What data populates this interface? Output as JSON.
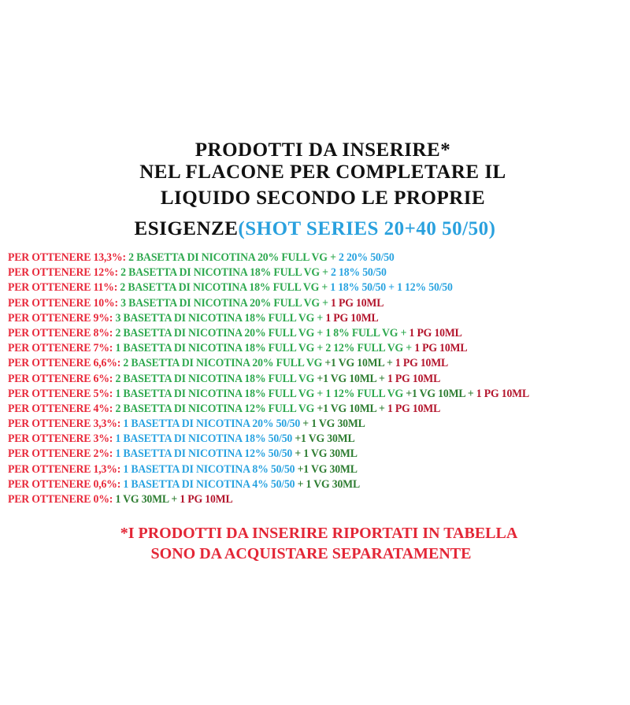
{
  "colors": {
    "label": "#e8283a",
    "full_vg": "#2ea84f",
    "vg": "#2e7d32",
    "fifty": "#29a3e0",
    "pg": "#b3142c"
  },
  "title": {
    "line1": "Prodotti da inserire*",
    "line2": "nel flacone per completare il",
    "line3": "liquido secondo le proprie",
    "line4_main": "esigenze",
    "line4_sub": "(Shot Series 20+40 50/50)"
  },
  "rows": [
    [
      [
        "Per ottenere 13,3%: ",
        "label"
      ],
      [
        "2 basetta di nicotina 20% full VG + ",
        "full_vg"
      ],
      [
        "2 20% 50/50",
        "fifty"
      ]
    ],
    [
      [
        "Per ottenere 12%: ",
        "label"
      ],
      [
        "2 basetta di nicotina 18% full VG + ",
        "full_vg"
      ],
      [
        "2 18% 50/50",
        "fifty"
      ]
    ],
    [
      [
        "Per ottenere 11%: ",
        "label"
      ],
      [
        "2 basetta di nicotina 18% full VG + ",
        "full_vg"
      ],
      [
        "1 18% 50/50 + 1 12% 50/50",
        "fifty"
      ]
    ],
    [
      [
        "Per ottenere 10%: ",
        "label"
      ],
      [
        "3 basetta di nicotina 20% full VG + ",
        "full_vg"
      ],
      [
        "1 PG 10ml",
        "pg"
      ]
    ],
    [
      [
        "Per ottenere 9%: ",
        "label"
      ],
      [
        "3 basetta di nicotina 18% full VG + ",
        "full_vg"
      ],
      [
        "1 PG 10ml",
        "pg"
      ]
    ],
    [
      [
        "Per ottenere 8%: ",
        "label"
      ],
      [
        "2 basetta di nicotina 20% full VG + 1 8% full VG + ",
        "full_vg"
      ],
      [
        "1 PG 10ml",
        "pg"
      ]
    ],
    [
      [
        "Per ottenere 7%: ",
        "label"
      ],
      [
        "1 basetta di nicotina 18% full VG + 2 12% full VG + ",
        "full_vg"
      ],
      [
        "1 PG 10ml",
        "pg"
      ]
    ],
    [
      [
        "Per ottenere 6,6%: ",
        "label"
      ],
      [
        "2 basetta di nicotina 20% full VG ",
        "full_vg"
      ],
      [
        "+1 VG 10ml + ",
        "vg"
      ],
      [
        "1 PG 10ml",
        "pg"
      ]
    ],
    [
      [
        "Per ottenere 6%: ",
        "label"
      ],
      [
        "2 basetta di nicotina 18% full VG ",
        "full_vg"
      ],
      [
        "+1 VG 10ml + ",
        "vg"
      ],
      [
        "1 PG 10ml",
        "pg"
      ]
    ],
    [
      [
        "Per ottenere 5%: ",
        "label"
      ],
      [
        "1 basetta di nicotina 18% full VG + 1 12% full VG ",
        "full_vg"
      ],
      [
        "+1 VG 10ml + ",
        "vg"
      ],
      [
        "1 PG 10ml",
        "pg"
      ]
    ],
    [
      [
        "Per ottenere 4%: ",
        "label"
      ],
      [
        "2 basetta di nicotina 12% full VG ",
        "full_vg"
      ],
      [
        "+1 VG 10ml + ",
        "vg"
      ],
      [
        "1 PG 10ml",
        "pg"
      ]
    ],
    [
      [
        "Per ottenere 3,3%: ",
        "label"
      ],
      [
        "1 basetta di nicotina 20% 50/50 ",
        "fifty"
      ],
      [
        "+ 1 VG 30ml",
        "vg"
      ]
    ],
    [
      [
        "Per ottenere 3%: ",
        "label"
      ],
      [
        "1 basetta di nicotina 18% 50/50 ",
        "fifty"
      ],
      [
        "+1 VG 30ml",
        "vg"
      ]
    ],
    [
      [
        "Per ottenere 2%: ",
        "label"
      ],
      [
        "1 basetta di nicotina 12% 50/50 ",
        "fifty"
      ],
      [
        "+ 1 VG 30ml",
        "vg"
      ]
    ],
    [
      [
        "Per ottenere 1,3%: ",
        "label"
      ],
      [
        "1 basetta di nicotina 8% 50/50 ",
        "fifty"
      ],
      [
        "+1 VG 30ml",
        "vg"
      ]
    ],
    [
      [
        "Per ottenere 0,6%: ",
        "label"
      ],
      [
        "1 basetta di nicotina 4% 50/50 ",
        "fifty"
      ],
      [
        "+ 1 VG 30ml",
        "vg"
      ]
    ],
    [
      [
        "Per ottenere 0%: ",
        "label"
      ],
      [
        "1 VG 30ml + ",
        "vg"
      ],
      [
        "1 PG 10ml",
        "pg"
      ]
    ]
  ],
  "footer": {
    "line1": "*I prodotti da inserire riportati in tabella",
    "line2": "sono da acquistare separatamente"
  }
}
